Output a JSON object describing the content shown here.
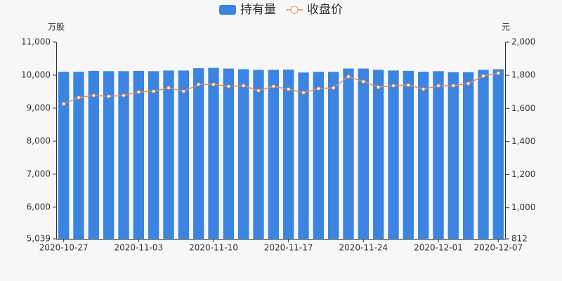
{
  "chart_data": {
    "type": "bar",
    "y_unit": "万股",
    "y2_unit": "元",
    "categories": [
      "2020-10-27",
      null,
      null,
      null,
      null,
      "2020-11-03",
      null,
      null,
      null,
      null,
      "2020-11-10",
      null,
      null,
      null,
      null,
      "2020-11-17",
      null,
      null,
      null,
      null,
      "2020-11-24",
      null,
      null,
      null,
      null,
      "2020-12-01",
      null,
      null,
      null,
      "2020-12-07"
    ],
    "series": [
      {
        "name": "持有量",
        "color": "#3b84e1",
        "type": "bar",
        "values": [
          10100,
          10100,
          10130,
          10120,
          10120,
          10130,
          10120,
          10140,
          10140,
          10210,
          10220,
          10200,
          10180,
          10160,
          10160,
          10170,
          10080,
          10100,
          10100,
          10200,
          10200,
          10160,
          10140,
          10130,
          10100,
          10120,
          10090,
          10090,
          10160,
          10180
        ]
      },
      {
        "name": "收盘价",
        "color": "#ef8a4a",
        "type": "line",
        "axis": "y2",
        "values": [
          1627,
          1665,
          1678,
          1673,
          1678,
          1699,
          1703,
          1724,
          1703,
          1745,
          1745,
          1733,
          1737,
          1707,
          1733,
          1716,
          1695,
          1720,
          1724,
          1792,
          1762,
          1728,
          1737,
          1741,
          1716,
          1737,
          1737,
          1750,
          1796,
          1813
        ]
      }
    ],
    "ylim": [
      5039,
      11000
    ],
    "yticks": [
      {
        "value": 5039,
        "label": "5,039"
      },
      {
        "value": 6000,
        "label": "6,000"
      },
      {
        "value": 7000,
        "label": "7,000"
      },
      {
        "value": 8000,
        "label": "8,000"
      },
      {
        "value": 9000,
        "label": "9,000"
      },
      {
        "value": 10000,
        "label": "10,000"
      },
      {
        "value": 11000,
        "label": "11,000"
      }
    ],
    "y2lim": [
      812,
      2000
    ],
    "y2ticks": [
      812,
      {
        "value": 1000,
        "label": "1,000"
      },
      {
        "value": 1200,
        "label": "1,200"
      },
      {
        "value": 1400,
        "label": "1,400"
      },
      {
        "value": 1600,
        "label": "1,600"
      },
      {
        "value": 1800,
        "label": "1,800"
      },
      {
        "value": 2000,
        "label": "2,000"
      }
    ],
    "grid": false,
    "legend": "top"
  }
}
